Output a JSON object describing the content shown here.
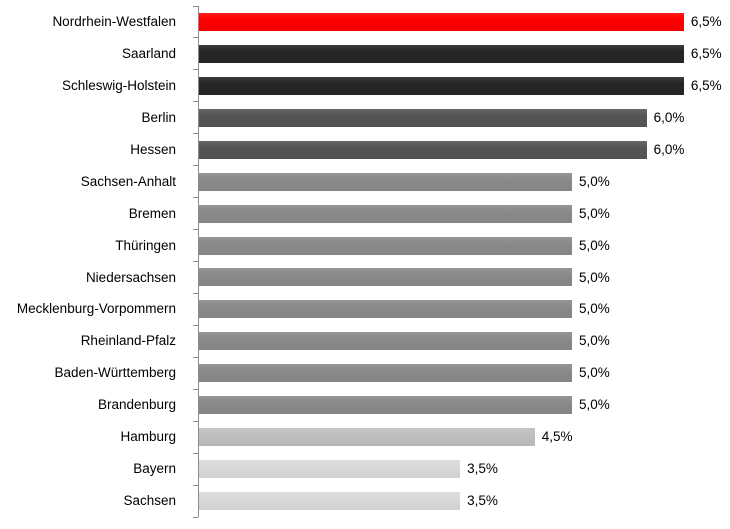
{
  "chart_data": {
    "type": "bar",
    "orientation": "horizontal",
    "title": "",
    "xlabel": "",
    "ylabel": "",
    "categories": [
      "Nordrhein-Westfalen",
      "Saarland",
      "Schleswig-Holstein",
      "Berlin",
      "Hessen",
      "Sachsen-Anhalt",
      "Bremen",
      "Thüringen",
      "Niedersachsen",
      "Mecklenburg-Vorpommern",
      "Rheinland-Pfalz",
      "Baden-Württemberg",
      "Brandenburg",
      "Hamburg",
      "Bayern",
      "Sachsen"
    ],
    "values": [
      6.5,
      6.5,
      6.5,
      6.0,
      6.0,
      5.0,
      5.0,
      5.0,
      5.0,
      5.0,
      5.0,
      5.0,
      5.0,
      4.5,
      3.5,
      3.5
    ],
    "value_labels": [
      "6,5%",
      "6,5%",
      "6,5%",
      "6,0%",
      "6,0%",
      "5,0%",
      "5,0%",
      "5,0%",
      "5,0%",
      "5,0%",
      "5,0%",
      "5,0%",
      "5,0%",
      "4,5%",
      "3,5%",
      "3,5%"
    ],
    "bar_colors": [
      "#fe0000",
      "#262626",
      "#262626",
      "#555555",
      "#555555",
      "#8a8a8a",
      "#8a8a8a",
      "#8a8a8a",
      "#8a8a8a",
      "#8a8a8a",
      "#8a8a8a",
      "#8a8a8a",
      "#8a8a8a",
      "#bfbfbf",
      "#d9d9d9",
      "#d9d9d9"
    ],
    "xlim": [
      0,
      7.13
    ],
    "axis_color": "#8c8c8c",
    "text_color": "#000000",
    "grid": false,
    "legend": false
  }
}
